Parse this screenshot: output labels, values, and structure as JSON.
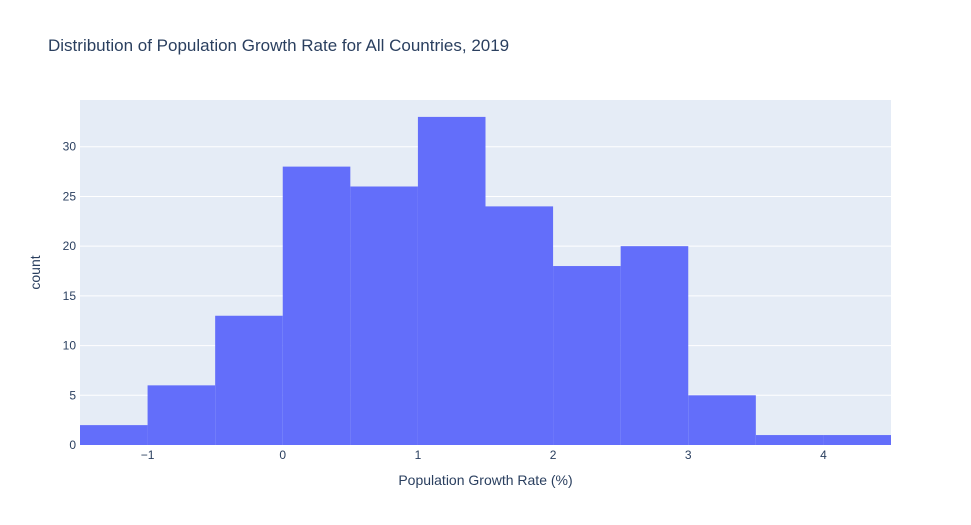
{
  "chart_data": {
    "type": "bar",
    "title": "Distribution of Population Growth Rate for All Countries, 2019",
    "xlabel": "Population Growth Rate (%)",
    "ylabel": "count",
    "bins": [
      {
        "start": -1.5,
        "end": -1.0,
        "count": 2
      },
      {
        "start": -1.0,
        "end": -0.5,
        "count": 6
      },
      {
        "start": -0.5,
        "end": 0.0,
        "count": 13
      },
      {
        "start": 0.0,
        "end": 0.5,
        "count": 28
      },
      {
        "start": 0.5,
        "end": 1.0,
        "count": 26
      },
      {
        "start": 1.0,
        "end": 1.5,
        "count": 33
      },
      {
        "start": 1.5,
        "end": 2.0,
        "count": 24
      },
      {
        "start": 2.0,
        "end": 2.5,
        "count": 18
      },
      {
        "start": 2.5,
        "end": 3.0,
        "count": 20
      },
      {
        "start": 3.0,
        "end": 3.5,
        "count": 5
      },
      {
        "start": 3.5,
        "end": 4.0,
        "count": 1
      },
      {
        "start": 4.0,
        "end": 4.5,
        "count": 1
      }
    ],
    "xlim": [
      -1.5,
      4.5
    ],
    "ylim": [
      0,
      34.7
    ],
    "x_ticks": [
      -1,
      0,
      1,
      2,
      3,
      4
    ],
    "x_tick_labels": [
      "−1",
      "0",
      "1",
      "2",
      "3",
      "4"
    ],
    "y_ticks": [
      0,
      5,
      10,
      15,
      20,
      25,
      30
    ],
    "y_tick_labels": [
      "0",
      "5",
      "10",
      "15",
      "20",
      "25",
      "30"
    ],
    "grid": true,
    "bar_color": "#636efa",
    "plot_bg_color": "#e5ecf6",
    "grid_color": "#ffffff",
    "text_color": "#2a3f5f"
  }
}
